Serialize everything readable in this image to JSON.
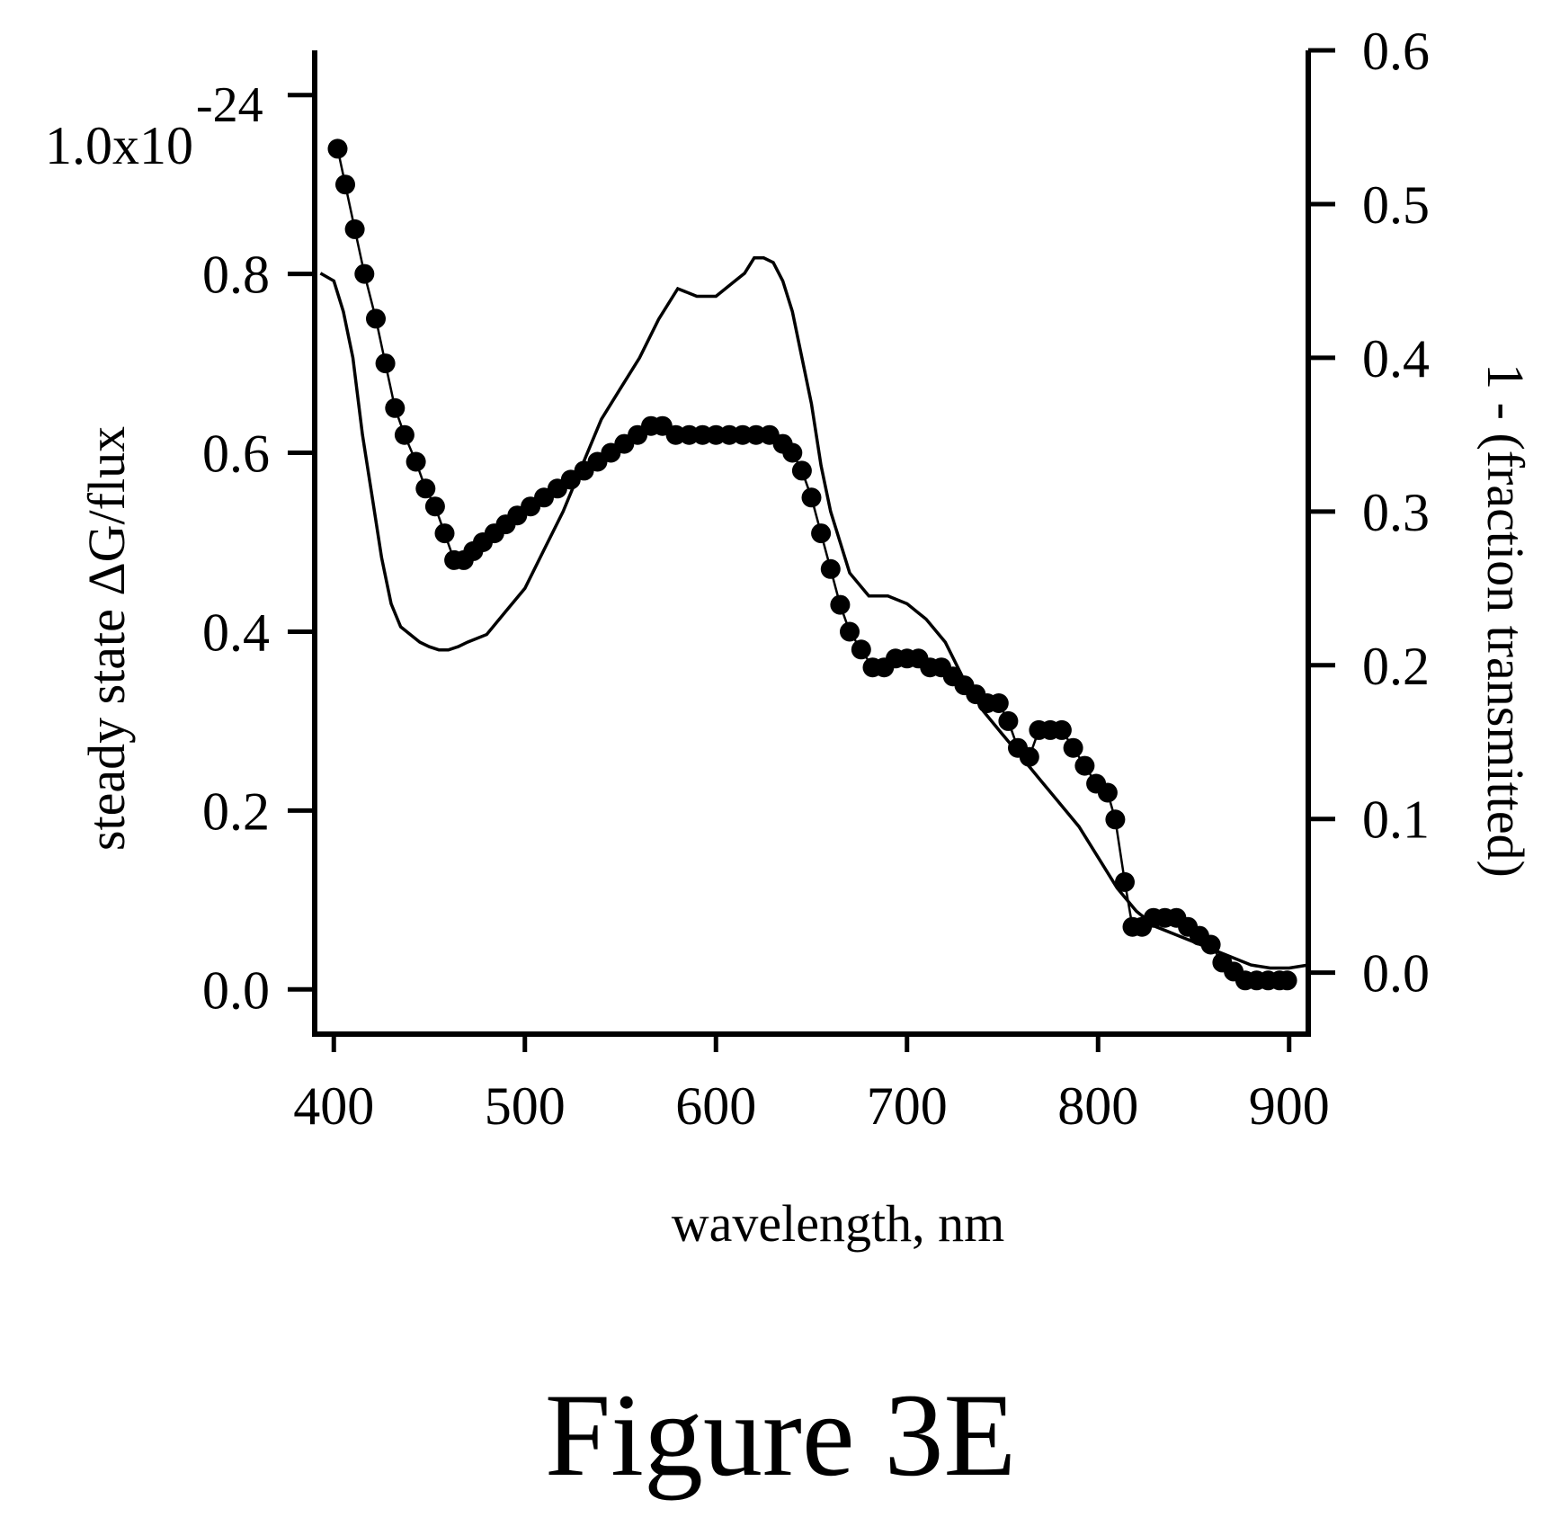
{
  "chart_data": {
    "type": "line",
    "xlabel": "wavelength, nm",
    "ylabel_left": "steady state ΔG/flux",
    "ylabel_right": "1 - (fraction transmitted)",
    "left_axis_multiplier": "1.0x10",
    "left_axis_exponent": "-24",
    "xlim": [
      390,
      910
    ],
    "ylim_left": [
      -0.05,
      1.05
    ],
    "ylim_right": [
      -0.04,
      0.6
    ],
    "xticks": [
      "400",
      "500",
      "600",
      "700",
      "800",
      "900"
    ],
    "xtick_values": [
      400,
      500,
      600,
      700,
      800,
      900
    ],
    "yticks_left": [
      "0.0",
      "0.2",
      "0.4",
      "0.6",
      "0.8"
    ],
    "ytick_values_left": [
      0.0,
      0.2,
      0.4,
      0.6,
      0.8
    ],
    "yticks_right": [
      "0.0",
      "0.1",
      "0.2",
      "0.3",
      "0.4",
      "0.5",
      "0.6"
    ],
    "ytick_values_right": [
      0.0,
      0.1,
      0.2,
      0.3,
      0.4,
      0.5,
      0.6
    ],
    "grid": false,
    "series": [
      {
        "axis": "left",
        "style": "markers-with-line",
        "x": [
          402,
          406,
          411,
          416,
          422,
          427,
          432,
          437,
          443,
          448,
          453,
          458,
          463,
          468,
          473,
          478,
          484,
          490,
          496,
          503,
          510,
          517,
          524,
          531,
          538,
          545,
          552,
          559,
          566,
          572,
          579,
          586,
          593,
          600,
          607,
          614,
          621,
          628,
          635,
          640,
          645,
          650,
          655,
          660,
          665,
          670,
          676,
          682,
          688,
          694,
          700,
          706,
          712,
          718,
          724,
          730,
          736,
          742,
          748,
          753,
          758,
          764,
          769,
          775,
          781,
          787,
          793,
          799,
          805,
          809,
          814,
          818,
          823,
          829,
          835,
          841,
          847,
          853,
          859,
          865,
          871,
          877,
          883,
          889,
          895,
          899
        ],
        "values": [
          0.94,
          0.9,
          0.85,
          0.8,
          0.75,
          0.7,
          0.65,
          0.62,
          0.59,
          0.56,
          0.54,
          0.51,
          0.48,
          0.48,
          0.49,
          0.5,
          0.51,
          0.52,
          0.53,
          0.54,
          0.55,
          0.56,
          0.57,
          0.58,
          0.59,
          0.6,
          0.61,
          0.62,
          0.63,
          0.63,
          0.62,
          0.62,
          0.62,
          0.62,
          0.62,
          0.62,
          0.62,
          0.62,
          0.61,
          0.6,
          0.58,
          0.55,
          0.51,
          0.47,
          0.43,
          0.4,
          0.38,
          0.36,
          0.36,
          0.37,
          0.37,
          0.37,
          0.36,
          0.36,
          0.35,
          0.34,
          0.33,
          0.32,
          0.32,
          0.3,
          0.27,
          0.26,
          0.29,
          0.29,
          0.29,
          0.27,
          0.25,
          0.23,
          0.22,
          0.19,
          0.12,
          0.07,
          0.07,
          0.08,
          0.08,
          0.08,
          0.07,
          0.06,
          0.05,
          0.03,
          0.02,
          0.01,
          0.01,
          0.01,
          0.01,
          0.01
        ]
      },
      {
        "axis": "right",
        "style": "line",
        "x": [
          393,
          400,
          405,
          410,
          415,
          420,
          425,
          430,
          435,
          440,
          445,
          450,
          455,
          460,
          465,
          470,
          480,
          490,
          500,
          510,
          520,
          530,
          540,
          550,
          560,
          570,
          580,
          590,
          600,
          610,
          615,
          620,
          625,
          630,
          635,
          640,
          645,
          650,
          655,
          660,
          665,
          670,
          680,
          690,
          700,
          710,
          720,
          730,
          740,
          750,
          760,
          770,
          780,
          790,
          800,
          810,
          820,
          830,
          840,
          850,
          860,
          870,
          880,
          890,
          900,
          910
        ],
        "values": [
          0.455,
          0.45,
          0.43,
          0.4,
          0.35,
          0.31,
          0.27,
          0.24,
          0.225,
          0.22,
          0.215,
          0.212,
          0.21,
          0.21,
          0.212,
          0.215,
          0.22,
          0.235,
          0.25,
          0.275,
          0.3,
          0.33,
          0.36,
          0.38,
          0.4,
          0.425,
          0.445,
          0.44,
          0.44,
          0.45,
          0.455,
          0.465,
          0.465,
          0.462,
          0.45,
          0.43,
          0.4,
          0.37,
          0.33,
          0.3,
          0.28,
          0.26,
          0.245,
          0.245,
          0.24,
          0.23,
          0.215,
          0.19,
          0.17,
          0.155,
          0.14,
          0.125,
          0.11,
          0.095,
          0.075,
          0.055,
          0.04,
          0.03,
          0.025,
          0.02,
          0.015,
          0.01,
          0.005,
          0.003,
          0.003,
          0.005
        ]
      }
    ]
  },
  "caption": "Figure 3E"
}
